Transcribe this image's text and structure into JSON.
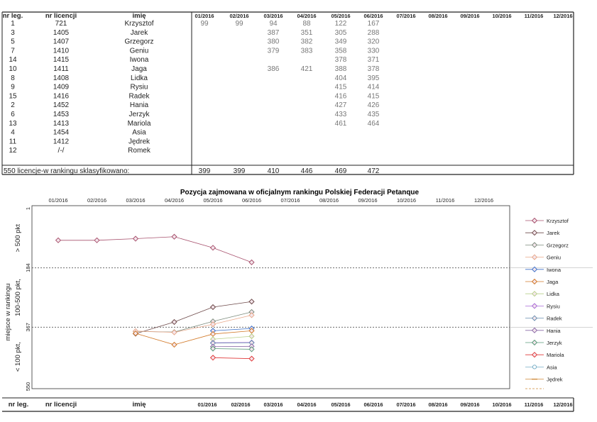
{
  "table": {
    "headers": [
      "nr leg.",
      "nr licencji",
      "imię",
      "01/2016",
      "02/2016",
      "03/2016",
      "04/2016",
      "05/2016",
      "06/2016",
      "07/2016",
      "08/2016",
      "09/2016",
      "10/2016",
      "11/2016",
      "12/2016"
    ],
    "rows": [
      {
        "leg": "1",
        "lic": "721",
        "name": "Krzysztof",
        "v": [
          "99",
          "99",
          "94",
          "88",
          "122",
          "167"
        ]
      },
      {
        "leg": "3",
        "lic": "1405",
        "name": "Jarek",
        "v": [
          "",
          "",
          "387",
          "351",
          "305",
          "288"
        ]
      },
      {
        "leg": "5",
        "lic": "1407",
        "name": "Grzegorz",
        "v": [
          "",
          "",
          "380",
          "382",
          "349",
          "320"
        ]
      },
      {
        "leg": "7",
        "lic": "1410",
        "name": "Geniu",
        "v": [
          "",
          "",
          "379",
          "383",
          "358",
          "330"
        ]
      },
      {
        "leg": "14",
        "lic": "1415",
        "name": "Iwona",
        "v": [
          "",
          "",
          "",
          "",
          "378",
          "371"
        ]
      },
      {
        "leg": "10",
        "lic": "1411",
        "name": "Jaga",
        "v": [
          "",
          "",
          "386",
          "421",
          "388",
          "378"
        ]
      },
      {
        "leg": "8",
        "lic": "1408",
        "name": "Lidka",
        "v": [
          "",
          "",
          "",
          "",
          "404",
          "395"
        ]
      },
      {
        "leg": "9",
        "lic": "1409",
        "name": "Rysiu",
        "v": [
          "",
          "",
          "",
          "",
          "415",
          "414"
        ]
      },
      {
        "leg": "15",
        "lic": "1416",
        "name": "Radek",
        "v": [
          "",
          "",
          "",
          "",
          "416",
          "415"
        ]
      },
      {
        "leg": "2",
        "lic": "1452",
        "name": "Hania",
        "v": [
          "",
          "",
          "",
          "",
          "427",
          "426"
        ]
      },
      {
        "leg": "6",
        "lic": "1453",
        "name": "Jerzyk",
        "v": [
          "",
          "",
          "",
          "",
          "433",
          "435"
        ]
      },
      {
        "leg": "13",
        "lic": "1413",
        "name": "Mariola",
        "v": [
          "",
          "",
          "",
          "",
          "461",
          "464"
        ]
      },
      {
        "leg": "4",
        "lic": "1454",
        "name": "Asia",
        "v": [
          "",
          "",
          "",
          "",
          "",
          ""
        ]
      },
      {
        "leg": "11",
        "lic": "1412",
        "name": "Jędrek",
        "v": [
          "",
          "",
          "",
          "",
          "",
          ""
        ]
      },
      {
        "leg": "12",
        "lic": "/-/",
        "name": "Romek",
        "v": [
          "",
          "",
          "",
          "",
          "",
          ""
        ]
      }
    ],
    "summary_label": "550 licencje-w rankingu sklasyfikowano:",
    "summary_values": [
      "399",
      "399",
      "410",
      "446",
      "469",
      "472"
    ]
  },
  "chart_data": {
    "type": "line",
    "title": "Pozycja zajmowana w oficjalnym rankingu Polskiej Federacji Petanque",
    "ylabel": "miejsce w rankingu",
    "band_labels": [
      "> 500 pkt",
      "100-500 pkt,",
      "< 100 pkt,"
    ],
    "y_ticks": [
      "1",
      "184",
      "367",
      "550"
    ],
    "x": [
      "01/2016",
      "02/2016",
      "03/2016",
      "04/2016",
      "05/2016",
      "06/2016",
      "07/2016",
      "08/2016",
      "09/2016",
      "10/2016",
      "11/2016",
      "12/2016"
    ],
    "series": [
      {
        "name": "Krzysztof",
        "color": "#a8526e",
        "marker": "diamond",
        "values": [
          99,
          99,
          94,
          88,
          122,
          167,
          null,
          null,
          null,
          null,
          null,
          null
        ]
      },
      {
        "name": "Jarek",
        "color": "#6e4a4a",
        "marker": "diamond",
        "values": [
          null,
          null,
          387,
          351,
          305,
          288,
          null,
          null,
          null,
          null,
          null,
          null
        ]
      },
      {
        "name": "Grzegorz",
        "color": "#7d8c7d",
        "marker": "diamond",
        "values": [
          null,
          null,
          380,
          382,
          349,
          320,
          null,
          null,
          null,
          null,
          null,
          null
        ]
      },
      {
        "name": "Geniu",
        "color": "#e8a88a",
        "marker": "diamond",
        "values": [
          null,
          null,
          379,
          383,
          358,
          330,
          null,
          null,
          null,
          null,
          null,
          null
        ]
      },
      {
        "name": "Iwona",
        "color": "#3a6fc8",
        "marker": "diamond",
        "values": [
          null,
          null,
          null,
          null,
          378,
          371,
          null,
          null,
          null,
          null,
          null,
          null
        ]
      },
      {
        "name": "Jaga",
        "color": "#d27a2a",
        "marker": "diamond",
        "values": [
          null,
          null,
          386,
          421,
          388,
          378,
          null,
          null,
          null,
          null,
          null,
          null
        ]
      },
      {
        "name": "Lidka",
        "color": "#b8d08a",
        "marker": "diamond",
        "values": [
          null,
          null,
          null,
          null,
          404,
          395,
          null,
          null,
          null,
          null,
          null,
          null
        ]
      },
      {
        "name": "Rysiu",
        "color": "#a86ad8",
        "marker": "diamond",
        "values": [
          null,
          null,
          null,
          null,
          415,
          414,
          null,
          null,
          null,
          null,
          null,
          null
        ]
      },
      {
        "name": "Radek",
        "color": "#6a8fb0",
        "marker": "diamond",
        "values": [
          null,
          null,
          null,
          null,
          416,
          415,
          null,
          null,
          null,
          null,
          null,
          null
        ]
      },
      {
        "name": "Hania",
        "color": "#8a6aa8",
        "marker": "diamond",
        "values": [
          null,
          null,
          null,
          null,
          427,
          426,
          null,
          null,
          null,
          null,
          null,
          null
        ]
      },
      {
        "name": "Jerzyk",
        "color": "#5a9a7a",
        "marker": "diamond",
        "values": [
          null,
          null,
          null,
          null,
          433,
          435,
          null,
          null,
          null,
          null,
          null,
          null
        ]
      },
      {
        "name": "Mariola",
        "color": "#e03838",
        "marker": "diamond",
        "values": [
          null,
          null,
          null,
          null,
          461,
          464,
          null,
          null,
          null,
          null,
          null,
          null
        ]
      },
      {
        "name": "Asia",
        "color": "#7ab0c8",
        "marker": "circle",
        "values": [
          null,
          null,
          null,
          null,
          null,
          null,
          null,
          null,
          null,
          null,
          null,
          null
        ]
      },
      {
        "name": "Jędrek",
        "color": "#d08a3a",
        "marker": "dash",
        "values": [
          null,
          null,
          null,
          null,
          null,
          null,
          null,
          null,
          null,
          null,
          null,
          null
        ]
      }
    ],
    "ylim": [
      1,
      550
    ],
    "thresholds": [
      184,
      367
    ],
    "legend": "right"
  },
  "footer": {
    "headers": [
      "nr leg.",
      "nr licencji",
      "imię",
      "01/2016",
      "02/2016",
      "03/2016",
      "04/2016",
      "05/2016",
      "06/2016",
      "07/2016",
      "08/2016",
      "09/2016",
      "10/2016",
      "11/2016",
      "12/2016"
    ]
  }
}
